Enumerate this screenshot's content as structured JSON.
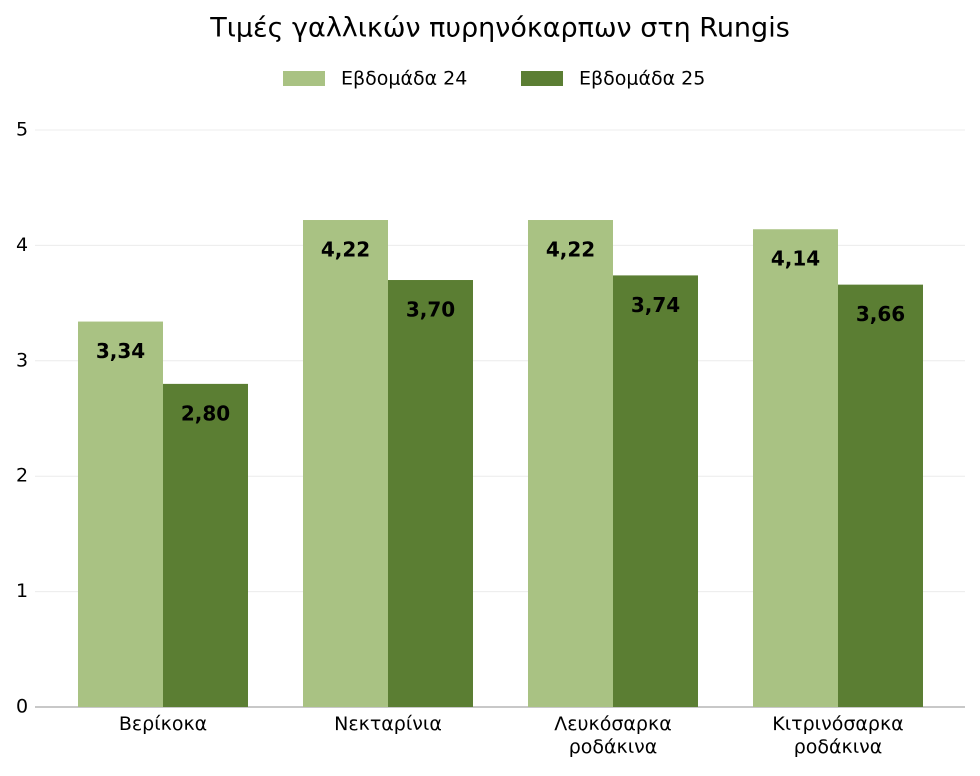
{
  "chart_data": {
    "type": "bar",
    "title": "Τιμές γαλλικών πυρηνόκαρπων στη Rungis",
    "categories": [
      "Βερίκοκα",
      "Νεκταρίνια",
      "Λευκόσαρκα ροδάκινα",
      "Κιτρινόσαρκα ροδάκινα"
    ],
    "series": [
      {
        "name": "Εβδομάδα 24",
        "color": "#a9c283",
        "values": [
          3.34,
          4.22,
          4.22,
          4.14
        ],
        "value_labels": [
          "3,34",
          "4,22",
          "4,22",
          "4,14"
        ]
      },
      {
        "name": "Εβδομάδα 25",
        "color": "#5b7e33",
        "values": [
          2.8,
          3.7,
          3.74,
          3.66
        ],
        "value_labels": [
          "2,80",
          "3,70",
          "3,74",
          "3,66"
        ]
      }
    ],
    "ylim": [
      0,
      5
    ],
    "yticks": [
      0,
      1,
      2,
      3,
      4,
      5
    ],
    "grid": true,
    "legend": "top"
  }
}
